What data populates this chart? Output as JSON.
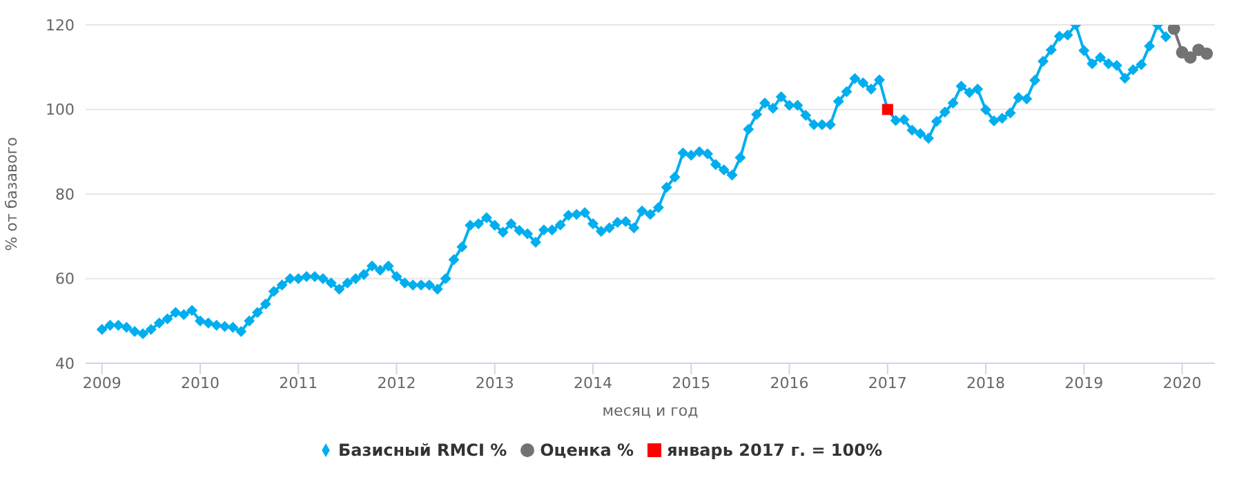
{
  "chart_data": {
    "type": "line",
    "xlabel": "месяц и год",
    "ylabel": "% от базавого",
    "xlim": [
      "2008-11",
      "2020-05"
    ],
    "xticks": [
      {
        "value": "2009",
        "label": "2009"
      },
      {
        "value": "2010",
        "label": "2010"
      },
      {
        "value": "2011",
        "label": "2011"
      },
      {
        "value": "2012",
        "label": "2012"
      },
      {
        "value": "2013",
        "label": "2013"
      },
      {
        "value": "2014",
        "label": "2014"
      },
      {
        "value": "2015",
        "label": "2015"
      },
      {
        "value": "2016",
        "label": "2016"
      },
      {
        "value": "2017",
        "label": "2017"
      },
      {
        "value": "2018",
        "label": "2018"
      },
      {
        "value": "2019",
        "label": "2019"
      },
      {
        "value": "2020",
        "label": "2020"
      }
    ],
    "ylim": [
      40,
      120
    ],
    "yticks": [
      40,
      60,
      80,
      100,
      120
    ],
    "grid": "y",
    "legend": "bottom",
    "line_style": "solid",
    "series": [
      {
        "name": "Оценка %",
        "color": "#737373",
        "marker": "circle",
        "x": [
          "2019-12",
          "2020-01",
          "2020-02",
          "2020-03",
          "2020-04"
        ],
        "values": [
          119.1,
          113.5,
          112.3,
          114.1,
          113.2
        ]
      },
      {
        "name": "Базисный RMCI %",
        "color": "#00aeef",
        "marker": "diamond",
        "x": [
          "2009-01",
          "2009-02",
          "2009-03",
          "2009-04",
          "2009-05",
          "2009-06",
          "2009-07",
          "2009-08",
          "2009-09",
          "2009-10",
          "2009-11",
          "2009-12",
          "2010-01",
          "2010-02",
          "2010-03",
          "2010-04",
          "2010-05",
          "2010-06",
          "2010-07",
          "2010-08",
          "2010-09",
          "2010-10",
          "2010-11",
          "2010-12",
          "2011-01",
          "2011-02",
          "2011-03",
          "2011-04",
          "2011-05",
          "2011-06",
          "2011-07",
          "2011-08",
          "2011-09",
          "2011-10",
          "2011-11",
          "2011-12",
          "2012-01",
          "2012-02",
          "2012-03",
          "2012-04",
          "2012-05",
          "2012-06",
          "2012-07",
          "2012-08",
          "2012-09",
          "2012-10",
          "2012-11",
          "2012-12",
          "2013-01",
          "2013-02",
          "2013-03",
          "2013-04",
          "2013-05",
          "2013-06",
          "2013-07",
          "2013-08",
          "2013-09",
          "2013-10",
          "2013-11",
          "2013-12",
          "2014-01",
          "2014-02",
          "2014-03",
          "2014-04",
          "2014-05",
          "2014-06",
          "2014-07",
          "2014-08",
          "2014-09",
          "2014-10",
          "2014-11",
          "2014-12",
          "2015-01",
          "2015-02",
          "2015-03",
          "2015-04",
          "2015-05",
          "2015-06",
          "2015-07",
          "2015-08",
          "2015-09",
          "2015-10",
          "2015-11",
          "2015-12",
          "2016-01",
          "2016-02",
          "2016-03",
          "2016-04",
          "2016-05",
          "2016-06",
          "2016-07",
          "2016-08",
          "2016-09",
          "2016-10",
          "2016-11",
          "2016-12",
          "2017-01",
          "2017-02",
          "2017-03",
          "2017-04",
          "2017-05",
          "2017-06",
          "2017-07",
          "2017-08",
          "2017-09",
          "2017-10",
          "2017-11",
          "2017-12",
          "2018-01",
          "2018-02",
          "2018-03",
          "2018-04",
          "2018-05",
          "2018-06",
          "2018-07",
          "2018-08",
          "2018-09",
          "2018-10",
          "2018-11",
          "2018-12",
          "2019-01",
          "2019-02",
          "2019-03",
          "2019-04",
          "2019-05",
          "2019-06",
          "2019-07",
          "2019-08",
          "2019-09",
          "2019-10",
          "2019-11"
        ],
        "values": [
          48,
          49,
          49,
          48.5,
          47.5,
          47,
          48,
          49.5,
          50.5,
          52,
          51.5,
          52.5,
          50,
          49.5,
          49,
          48.7,
          48.5,
          47.5,
          50,
          52,
          54,
          57,
          58.5,
          60,
          60,
          60.5,
          60.5,
          60,
          59,
          57.5,
          59,
          60,
          61,
          63,
          62,
          63,
          60.5,
          59,
          58.5,
          58.5,
          58.5,
          57.5,
          60,
          64.5,
          67.5,
          72.6,
          73,
          74.4,
          72.6,
          71,
          73,
          71.4,
          70.6,
          68.6,
          71.5,
          71.5,
          72.7,
          75,
          75.2,
          75.6,
          73,
          71.2,
          72,
          73.3,
          73.5,
          72,
          76,
          75.2,
          76.8,
          81.6,
          84,
          89.7,
          89.2,
          90,
          89.5,
          87,
          85.7,
          84.5,
          88.6,
          95.3,
          98.8,
          101.5,
          100.3,
          103,
          101,
          101,
          98.6,
          96.4,
          96.4,
          96.4,
          101.9,
          104.2,
          107.3,
          106.3,
          104.8,
          107,
          100,
          97.4,
          97.6,
          95.1,
          94.3,
          93.2,
          97.2,
          99.4,
          101.5,
          105.5,
          104,
          104.8,
          99.9,
          97.3,
          97.9,
          99.2,
          102.8,
          102.5,
          106.9,
          111.4,
          114.1,
          117.3,
          117.6,
          120,
          113.9,
          110.8,
          112.3,
          110.8,
          110.4,
          107.4,
          109.4,
          110.6,
          115,
          120,
          117.2
        ]
      },
      {
        "name": "январь 2017 г. = 100%",
        "color": "#ff0000",
        "marker": "square",
        "x": [
          "2017-01"
        ],
        "values": [
          100
        ]
      }
    ]
  }
}
